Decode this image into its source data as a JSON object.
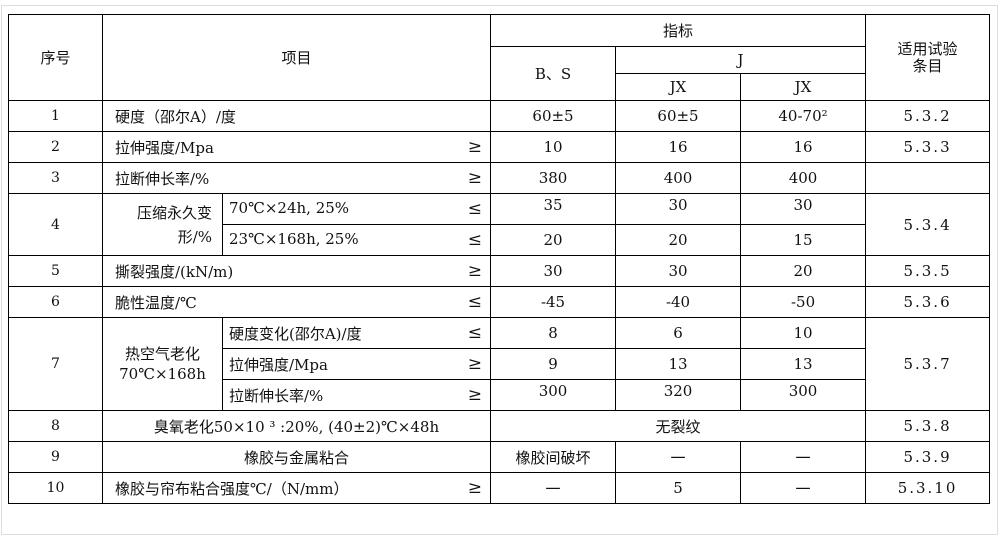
{
  "header": {
    "seq": "序号",
    "item": "项目",
    "indicator": "指标",
    "clause": "适用试验条目",
    "bs": "B、S",
    "j": "J",
    "jx1": "JX",
    "jx2": "JX"
  },
  "rows": [
    {
      "seq": "1",
      "item": "硬度（邵尔A）/度",
      "cmp": "",
      "bs": "60±5",
      "jx1": "60±5",
      "jx2": "40-70²",
      "clause": "5.3.2"
    },
    {
      "seq": "2",
      "item": "拉伸强度/Mpa",
      "cmp": "≥",
      "bs": "10",
      "jx1": "16",
      "jx2": "16",
      "clause": "5.3.3"
    },
    {
      "seq": "3",
      "item": "拉断伸长率/%",
      "cmp": "≥",
      "bs": "380",
      "jx1": "400",
      "jx2": "400",
      "clause": ""
    },
    {
      "seq": "4",
      "group": "压缩永久变形/%",
      "clause": "5.3.4",
      "subs": [
        {
          "item": "70℃×24h, 25%",
          "cmp": "≤",
          "bs": "35",
          "jx1": "30",
          "jx2": "30"
        },
        {
          "item": "23℃×168h, 25%",
          "cmp": "≤",
          "bs": "20",
          "jx1": "20",
          "jx2": "15"
        }
      ]
    },
    {
      "seq": "5",
      "item": "撕裂强度/(kN/m)",
      "cmp": "≥",
      "bs": "30",
      "jx1": "30",
      "jx2": "20",
      "clause": "5.3.5"
    },
    {
      "seq": "6",
      "item": "脆性温度/℃",
      "cmp": "≤",
      "bs": "-45",
      "jx1": "-40",
      "jx2": "-50",
      "clause": "5.3.6"
    },
    {
      "seq": "7",
      "group": "热空气老化",
      "group2": "70℃×168h",
      "clause": "5.3.7",
      "subs": [
        {
          "item": "硬度变化(邵尔A)/度",
          "cmp": "≤",
          "bs": "8",
          "jx1": "6",
          "jx2": "10"
        },
        {
          "item": "拉伸强度/Mpa",
          "cmp": "≥",
          "bs": "9",
          "jx1": "13",
          "jx2": "13"
        },
        {
          "item": "拉断伸长率/%",
          "cmp": "≥",
          "bs": "300",
          "jx1": "320",
          "jx2": "300"
        }
      ]
    },
    {
      "seq": "8",
      "item": "臭氧老化50×10 ³ :20%, (40±2)℃×48h",
      "value": "无裂纹",
      "clause": "5.3.8"
    },
    {
      "seq": "9",
      "item": "橡胶与金属粘合",
      "bs": "橡胶间破坏",
      "jx1": "一",
      "jx2": "一",
      "clause": "5.3.9"
    },
    {
      "seq": "10",
      "item": "橡胶与帘布粘合强度℃/（N/mm）",
      "cmp": "≥",
      "bs": "一",
      "jx1": "5",
      "jx2": "一",
      "clause": "5.3.10"
    }
  ]
}
